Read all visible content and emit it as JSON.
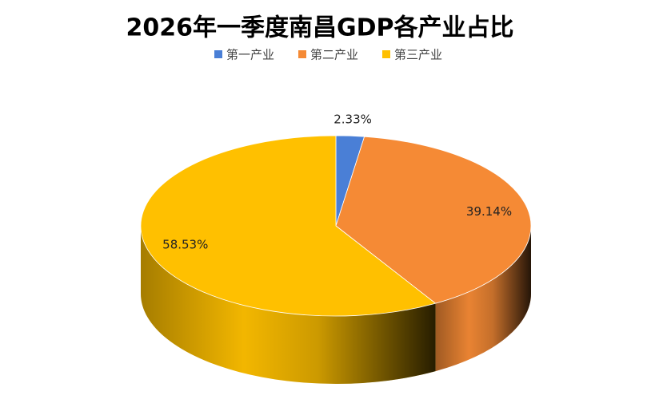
{
  "chart_data": {
    "type": "pie3d",
    "title": "2026年一季度南昌GDP各产业占比",
    "categories": [
      "第一产业",
      "第二产业",
      "第三产业"
    ],
    "values": [
      2.33,
      39.14,
      58.53
    ],
    "value_labels": [
      "2.33%",
      "39.14%",
      "58.53%"
    ],
    "colors": [
      "#4a7fd6",
      "#f58a35",
      "#ffc000"
    ],
    "legend": "top"
  }
}
